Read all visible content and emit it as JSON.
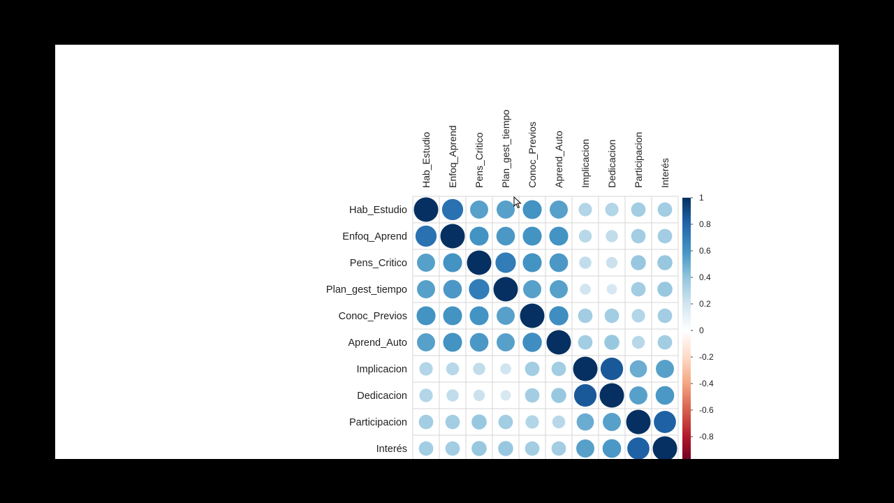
{
  "chart_data": {
    "type": "heatmap",
    "variables": [
      "Hab_Estudio",
      "Enfoq_Aprend",
      "Pens_Critico",
      "Plan_gest_tiempo",
      "Conoc_Previos",
      "Aprend_Auto",
      "Implicacion",
      "Dedicacion",
      "Participacion",
      "Interés"
    ],
    "matrix": [
      [
        1.0,
        0.75,
        0.55,
        0.55,
        0.6,
        0.55,
        0.3,
        0.3,
        0.35,
        0.35
      ],
      [
        0.75,
        1.0,
        0.6,
        0.58,
        0.6,
        0.6,
        0.28,
        0.25,
        0.35,
        0.35
      ],
      [
        0.55,
        0.6,
        1.0,
        0.7,
        0.6,
        0.58,
        0.25,
        0.22,
        0.38,
        0.38
      ],
      [
        0.55,
        0.58,
        0.7,
        1.0,
        0.55,
        0.55,
        0.2,
        0.18,
        0.35,
        0.38
      ],
      [
        0.6,
        0.6,
        0.6,
        0.55,
        1.0,
        0.62,
        0.35,
        0.35,
        0.3,
        0.35
      ],
      [
        0.55,
        0.6,
        0.58,
        0.55,
        0.62,
        1.0,
        0.35,
        0.38,
        0.28,
        0.35
      ],
      [
        0.3,
        0.28,
        0.25,
        0.2,
        0.35,
        0.35,
        1.0,
        0.85,
        0.5,
        0.55
      ],
      [
        0.3,
        0.25,
        0.22,
        0.18,
        0.35,
        0.38,
        0.85,
        1.0,
        0.55,
        0.58
      ],
      [
        0.35,
        0.35,
        0.38,
        0.35,
        0.3,
        0.28,
        0.5,
        0.55,
        1.0,
        0.82
      ],
      [
        0.35,
        0.35,
        0.38,
        0.38,
        0.35,
        0.35,
        0.55,
        0.58,
        0.82,
        1.0
      ]
    ],
    "color_scale": {
      "range": [
        -1,
        1
      ],
      "ticks": [
        "1",
        "0.8",
        "0.6",
        "0.4",
        "0.2",
        "0",
        "-0.2",
        "-0.4",
        "-0.6",
        "-0.8"
      ],
      "colors": [
        "#67001F",
        "#B2182B",
        "#D6604D",
        "#F4A582",
        "#FDDBC7",
        "#FFFFFF",
        "#D1E5F0",
        "#92C5DE",
        "#4393C3",
        "#2166AC",
        "#053061"
      ]
    },
    "method": "circle"
  }
}
